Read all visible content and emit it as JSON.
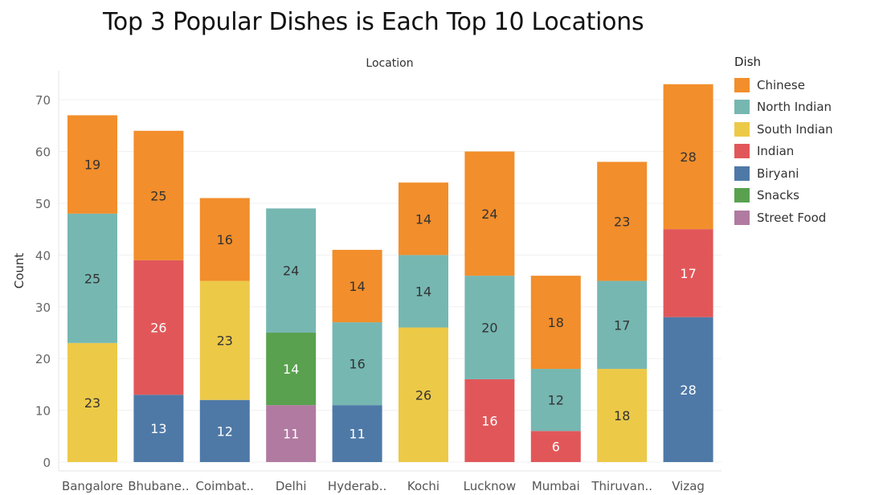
{
  "title": "Top 3 Popular Dishes is Each Top 10 Locations",
  "legend": {
    "title": "Dish",
    "items": [
      {
        "label": "Chinese",
        "color": "#F28E2B"
      },
      {
        "label": "North Indian",
        "color": "#76B7B2"
      },
      {
        "label": "South Indian",
        "color": "#EDC948"
      },
      {
        "label": "Indian",
        "color": "#E15759"
      },
      {
        "label": "Biryani",
        "color": "#4E79A7"
      },
      {
        "label": "Snacks",
        "color": "#59A14F"
      },
      {
        "label": "Street Food",
        "color": "#B07AA1"
      }
    ]
  },
  "chart_data": {
    "type": "bar",
    "stacked": true,
    "title": "Top 3 Popular Dishes is Each Top 10 Locations",
    "xlabel": "Location",
    "ylabel": "Count",
    "ylim": [
      0,
      73
    ],
    "yticks": [
      0,
      10,
      20,
      30,
      40,
      50,
      60,
      70
    ],
    "grid": true,
    "legend_position": "right",
    "categories": [
      "Bangalore",
      "Bhubane..",
      "Coimbat..",
      "Delhi",
      "Hyderab..",
      "Kochi",
      "Lucknow",
      "Mumbai",
      "Thiruvan..",
      "Vizag"
    ],
    "colors": {
      "Chinese": "#F28E2B",
      "North Indian": "#76B7B2",
      "South Indian": "#EDC948",
      "Indian": "#E15759",
      "Biryani": "#4E79A7",
      "Snacks": "#59A14F",
      "Street Food": "#B07AA1"
    },
    "stacks": [
      [
        {
          "dish": "South Indian",
          "value": 23
        },
        {
          "dish": "North Indian",
          "value": 25
        },
        {
          "dish": "Chinese",
          "value": 19
        }
      ],
      [
        {
          "dish": "Biryani",
          "value": 13
        },
        {
          "dish": "Indian",
          "value": 26
        },
        {
          "dish": "Chinese",
          "value": 25
        }
      ],
      [
        {
          "dish": "Biryani",
          "value": 12
        },
        {
          "dish": "South Indian",
          "value": 23
        },
        {
          "dish": "Chinese",
          "value": 16
        }
      ],
      [
        {
          "dish": "Street Food",
          "value": 11
        },
        {
          "dish": "Snacks",
          "value": 14
        },
        {
          "dish": "North Indian",
          "value": 24
        }
      ],
      [
        {
          "dish": "Biryani",
          "value": 11
        },
        {
          "dish": "North Indian",
          "value": 16
        },
        {
          "dish": "Chinese",
          "value": 14
        }
      ],
      [
        {
          "dish": "South Indian",
          "value": 26
        },
        {
          "dish": "North Indian",
          "value": 14
        },
        {
          "dish": "Chinese",
          "value": 14
        }
      ],
      [
        {
          "dish": "Indian",
          "value": 16
        },
        {
          "dish": "North Indian",
          "value": 20
        },
        {
          "dish": "Chinese",
          "value": 24
        }
      ],
      [
        {
          "dish": "Indian",
          "value": 6
        },
        {
          "dish": "North Indian",
          "value": 12
        },
        {
          "dish": "Chinese",
          "value": 18
        }
      ],
      [
        {
          "dish": "South Indian",
          "value": 18
        },
        {
          "dish": "North Indian",
          "value": 17
        },
        {
          "dish": "Chinese",
          "value": 23
        }
      ],
      [
        {
          "dish": "Biryani",
          "value": 28
        },
        {
          "dish": "Indian",
          "value": 17
        },
        {
          "dish": "Chinese",
          "value": 28
        }
      ]
    ]
  }
}
